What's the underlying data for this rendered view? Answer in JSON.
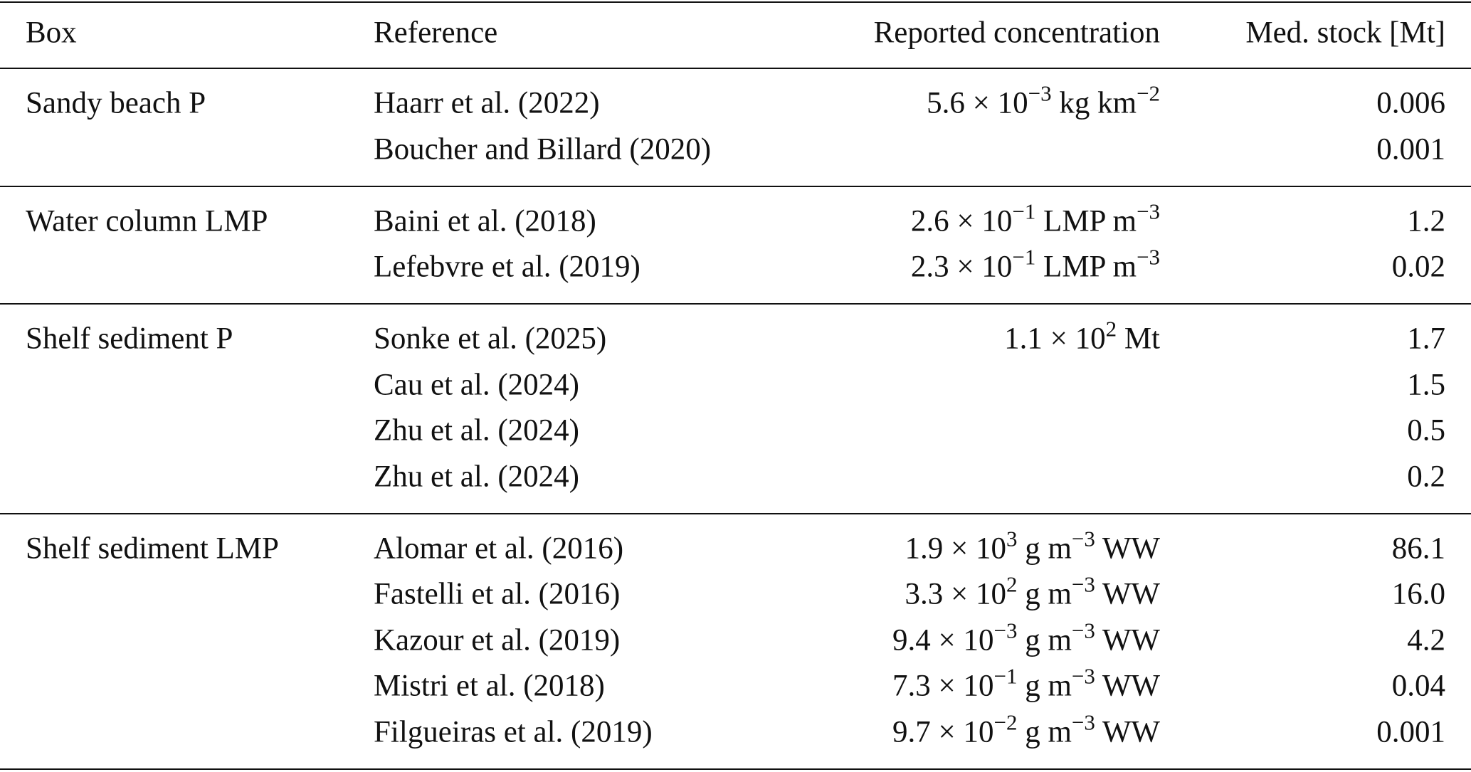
{
  "table": {
    "header": [
      "Box",
      "Reference",
      "Reported concentration",
      "Med. stock [Mt]"
    ],
    "groups": [
      {
        "box": "Sandy beach P",
        "rows": [
          {
            "reference": "Haarr et al. (2022)",
            "concentration": [
              "5.6 × 10",
              "−3",
              " kg km",
              "−2"
            ],
            "stock": "0.006"
          },
          {
            "reference": "Boucher and Billard (2020)",
            "concentration": [],
            "stock": "0.001"
          }
        ]
      },
      {
        "box": "Water column LMP",
        "rows": [
          {
            "reference": "Baini et al. (2018)",
            "concentration": [
              "2.6 × 10",
              "−1",
              " LMP m",
              "−3"
            ],
            "stock": "1.2"
          },
          {
            "reference": "Lefebvre et al. (2019)",
            "concentration": [
              "2.3 × 10",
              "−1",
              " LMP m",
              "−3"
            ],
            "stock": "0.02"
          }
        ]
      },
      {
        "box": "Shelf sediment P",
        "rows": [
          {
            "reference": "Sonke et al. (2025)",
            "concentration": [
              "1.1 × 10",
              "2",
              " Mt"
            ],
            "stock": "1.7"
          },
          {
            "reference": "Cau et al. (2024)",
            "concentration": [],
            "stock": "1.5"
          },
          {
            "reference": "Zhu et al. (2024)",
            "concentration": [],
            "stock": "0.5"
          },
          {
            "reference": "Zhu et al. (2024)",
            "concentration": [],
            "stock": "0.2"
          }
        ]
      },
      {
        "box": "Shelf sediment LMP",
        "rows": [
          {
            "reference": "Alomar et al. (2016)",
            "concentration": [
              "1.9 × 10",
              "3",
              " g m",
              "−3",
              " WW"
            ],
            "stock": "86.1"
          },
          {
            "reference": "Fastelli et al. (2016)",
            "concentration": [
              "3.3 × 10",
              "2",
              " g m",
              "−3",
              " WW"
            ],
            "stock": "16.0"
          },
          {
            "reference": "Kazour et al. (2019)",
            "concentration": [
              "9.4 × 10",
              "−3",
              " g m",
              "−3",
              " WW"
            ],
            "stock": "4.2"
          },
          {
            "reference": "Mistri et al. (2018)",
            "concentration": [
              "7.3 × 10",
              "−1",
              " g m",
              "−3",
              " WW"
            ],
            "stock": "0.04"
          },
          {
            "reference": "Filgueiras et al. (2019)",
            "concentration": [
              "9.7 × 10",
              "−2",
              " g m",
              "−3",
              " WW"
            ],
            "stock": "0.001"
          }
        ]
      }
    ]
  }
}
